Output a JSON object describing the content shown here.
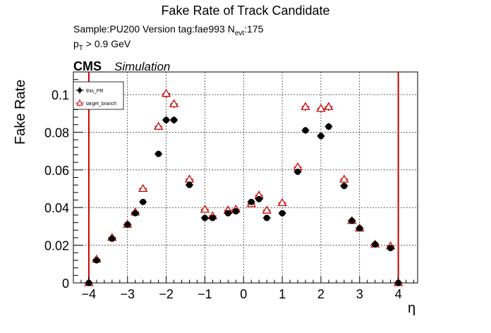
{
  "header": {
    "title": "Fake Rate of Track Candidate",
    "sample_prefix": "Sample:PU200   Version tag:fae993  N",
    "sample_sub": "evt",
    "sample_suffix": ":175",
    "pt_main": "p",
    "pt_sub": "T",
    "pt_suffix": " > 0.9 GeV",
    "cms": "CMS",
    "simulation": "Simulation"
  },
  "chart_data": {
    "type": "scatter",
    "title": "Fake Rate of Track Candidate",
    "xlabel": "η",
    "ylabel": "Fake Rate",
    "xlim": [
      -4.4,
      4.5
    ],
    "ylim": [
      0,
      0.112
    ],
    "grid": true,
    "legend_position": "top-left",
    "xticks": [
      -4,
      -3,
      -2,
      -1,
      0,
      1,
      2,
      3,
      4
    ],
    "xtick_labels": [
      "−4",
      "−3",
      "−2",
      "−1",
      "0",
      "1",
      "2",
      "3",
      "4"
    ],
    "yticks": [
      0,
      0.02,
      0.04,
      0.06,
      0.08,
      0.1
    ],
    "ytick_labels": [
      "0",
      "0.02",
      "0.04",
      "0.06",
      "0.08",
      "0.1"
    ],
    "bin_half_width": 0.1,
    "vertical_lines": [
      -4,
      4
    ],
    "vertical_line_color": "#cc0000",
    "series": [
      {
        "name": "this_PR",
        "color": "#000000",
        "marker": "filled-circle",
        "x": [
          -4.0,
          -3.8,
          -3.4,
          -3.0,
          -2.8,
          -2.6,
          -2.2,
          -2.0,
          -1.8,
          -1.4,
          -1.0,
          -0.8,
          -0.4,
          -0.2,
          0.2,
          0.4,
          0.6,
          1.0,
          1.4,
          1.6,
          2.0,
          2.2,
          2.6,
          2.8,
          3.0,
          3.4,
          3.8,
          4.0
        ],
        "y": [
          0.0,
          0.012,
          0.0235,
          0.031,
          0.037,
          0.043,
          0.0685,
          0.0865,
          0.0865,
          0.052,
          0.0345,
          0.0345,
          0.037,
          0.038,
          0.043,
          0.0445,
          0.0345,
          0.037,
          0.059,
          0.081,
          0.078,
          0.083,
          0.0515,
          0.033,
          0.029,
          0.0205,
          0.0185,
          0.0
        ],
        "y_err": [
          0.0004,
          0.0012,
          0.0012,
          0.0012,
          0.0013,
          0.0014,
          0.0016,
          0.002,
          0.002,
          0.0015,
          0.0013,
          0.0013,
          0.0013,
          0.0013,
          0.0013,
          0.0013,
          0.0013,
          0.0013,
          0.0016,
          0.0018,
          0.0018,
          0.0018,
          0.0015,
          0.0012,
          0.0012,
          0.0011,
          0.0011,
          0.0004
        ]
      },
      {
        "name": "target_branch",
        "color": "#cc0000",
        "marker": "open-triangle",
        "x": [
          -4.0,
          -3.8,
          -3.4,
          -3.0,
          -2.8,
          -2.6,
          -2.2,
          -2.0,
          -1.8,
          -1.4,
          -1.0,
          -0.8,
          -0.4,
          -0.2,
          0.2,
          0.4,
          0.6,
          1.0,
          1.4,
          1.6,
          2.0,
          2.2,
          2.6,
          2.8,
          3.0,
          3.4,
          3.8,
          4.0
        ],
        "y": [
          0.0,
          0.0125,
          0.024,
          0.031,
          0.0375,
          0.05,
          0.083,
          0.1005,
          0.095,
          0.055,
          0.039,
          0.0355,
          0.0385,
          0.039,
          0.042,
          0.0465,
          0.0385,
          0.0425,
          0.0615,
          0.0935,
          0.0925,
          0.0935,
          0.055,
          0.033,
          0.029,
          0.0205,
          0.0195,
          0.0
        ],
        "y_err": [
          0.0004,
          0.0012,
          0.0012,
          0.0012,
          0.0013,
          0.0015,
          0.0018,
          0.0022,
          0.0021,
          0.0016,
          0.0014,
          0.0013,
          0.0013,
          0.0013,
          0.0013,
          0.0014,
          0.0013,
          0.0014,
          0.0017,
          0.0021,
          0.0021,
          0.0021,
          0.0016,
          0.0012,
          0.0012,
          0.0011,
          0.0011,
          0.0004
        ]
      }
    ]
  }
}
